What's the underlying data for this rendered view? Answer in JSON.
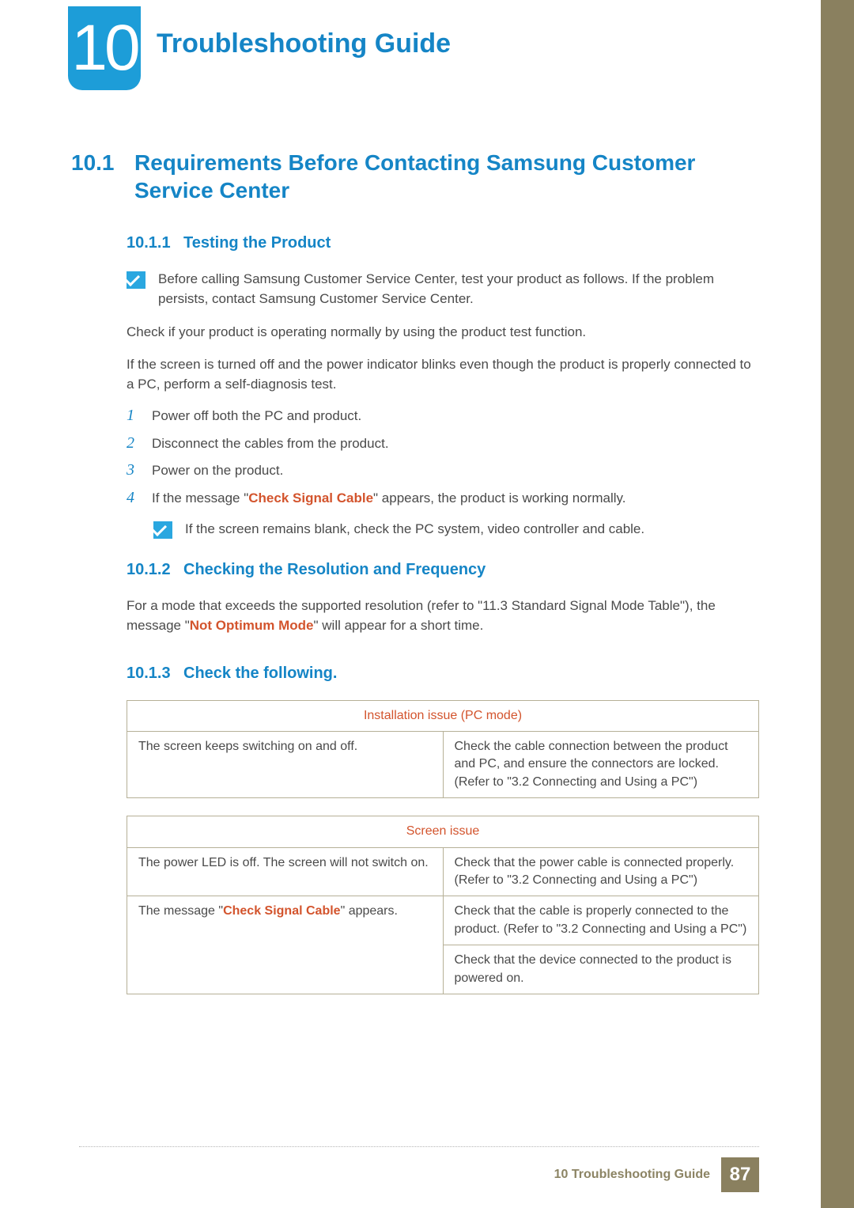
{
  "chapter": {
    "number": "10",
    "title": "Troubleshooting Guide"
  },
  "section": {
    "num": "10.1",
    "title": "Requirements Before Contacting Samsung Customer Service Center"
  },
  "sub1": {
    "num": "10.1.1",
    "title": "Testing the Product",
    "note": "Before calling Samsung Customer Service Center, test your product as follows. If the problem persists, contact Samsung Customer Service Center.",
    "p1": "Check if your product is operating normally by using the product test function.",
    "p2": "If the screen is turned off and the power indicator blinks even though the product is properly connected to a PC, perform a self-diagnosis test.",
    "steps": {
      "s1": "Power off both the PC and product.",
      "s2": "Disconnect the cables from the product.",
      "s3": "Power on the product.",
      "s4_pre": "If the message \"",
      "s4_hl": "Check Signal Cable",
      "s4_post": "\" appears, the product is working normally."
    },
    "subnote": "If the screen remains blank, check the PC system, video controller and cable."
  },
  "sub2": {
    "num": "10.1.2",
    "title": "Checking the Resolution and Frequency",
    "p_pre": "For a mode that exceeds the supported resolution (refer to \"11.3 Standard Signal Mode Table\"), the message \"",
    "p_hl": "Not Optimum Mode",
    "p_post": "\" will appear for a short time."
  },
  "sub3": {
    "num": "10.1.3",
    "title": "Check the following.",
    "table1": {
      "header": "Installation issue (PC mode)",
      "r1c1": "The screen keeps switching on and off.",
      "r1c2": "Check the cable connection between the product and PC, and ensure the connectors are locked. (Refer to \"3.2 Connecting and Using a PC\")"
    },
    "table2": {
      "header": "Screen issue",
      "r1c1": "The power LED is off. The screen will not switch on.",
      "r1c2": "Check that the power cable is connected properly. (Refer to \"3.2 Connecting and Using a PC\")",
      "r2c1_pre": "The message \"",
      "r2c1_hl": "Check Signal Cable",
      "r2c1_post": "\" appears.",
      "r2c2": "Check that the cable is properly connected to the product. (Refer to \"3.2 Connecting and Using a PC\")",
      "r3c2": "Check that the device connected to the product is powered on."
    }
  },
  "footer": {
    "label_num": "10",
    "label_text": " Troubleshooting Guide",
    "page": "87"
  },
  "colors": {
    "accent_blue": "#1585c6",
    "badge_blue": "#1d9dd8",
    "highlight_orange": "#d3542d",
    "olive": "#8a805f",
    "border": "#b6b097",
    "text": "#4a4a4a"
  }
}
